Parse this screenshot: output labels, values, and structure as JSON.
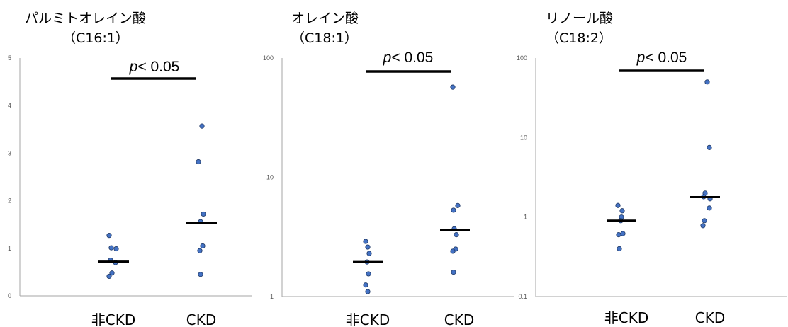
{
  "chart_data": [
    {
      "type": "scatter",
      "title": "パルミトオレイン酸",
      "subtitle": "（C16:1）",
      "yscale": "linear",
      "ylim": [
        0,
        5
      ],
      "yticks": [
        "0",
        "1",
        "2",
        "3",
        "4",
        "5"
      ],
      "categories": [
        "非CKD",
        "CKD"
      ],
      "points": [
        [
          1.27,
          1.01,
          0.99,
          0.75,
          0.7,
          0.48,
          0.41
        ],
        [
          3.57,
          2.82,
          1.72,
          1.56,
          1.05,
          0.95,
          0.45
        ]
      ],
      "medians": [
        0.72,
        1.53
      ],
      "significance": {
        "p_label": "p",
        "text": "< 0.05"
      }
    },
    {
      "type": "scatter",
      "title": "オレイン酸",
      "subtitle": "（C18:1）",
      "yscale": "log",
      "ylim": [
        1,
        100
      ],
      "yticks": [
        "1",
        "10",
        "100"
      ],
      "categories": [
        "非CKD",
        "CKD"
      ],
      "points": [
        [
          2.9,
          2.6,
          2.3,
          1.95,
          1.55,
          1.25,
          1.1
        ],
        [
          57.0,
          5.8,
          5.3,
          3.7,
          3.3,
          2.5,
          2.4,
          1.6
        ]
      ],
      "medians": [
        1.95,
        3.6
      ],
      "significance": {
        "p_label": "p",
        "text": "< 0.05"
      }
    },
    {
      "type": "scatter",
      "title": "リノール酸",
      "subtitle": "（C18:2）",
      "yscale": "log",
      "ylim": [
        0.1,
        100
      ],
      "yticks": [
        "0.1",
        "1",
        "10",
        "100"
      ],
      "categories": [
        "非CKD",
        "CKD"
      ],
      "points": [
        [
          1.4,
          1.2,
          1.0,
          0.9,
          0.62,
          0.6,
          0.4
        ],
        [
          50.0,
          7.5,
          2.0,
          1.8,
          1.7,
          1.3,
          0.9,
          0.78
        ]
      ],
      "medians": [
        0.9,
        1.78
      ],
      "significance": {
        "p_label": "p",
        "text": "< 0.05"
      }
    }
  ],
  "colors": {
    "point_fill": "#4472C4",
    "point_stroke": "#1F3864",
    "line": "#000000",
    "axis": "#A6A6A6"
  }
}
